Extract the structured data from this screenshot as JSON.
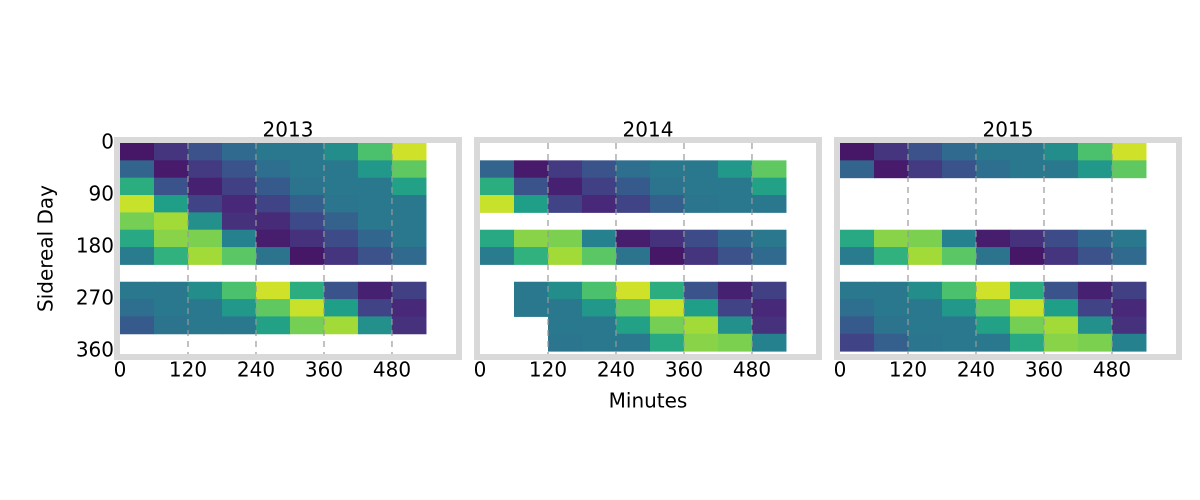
{
  "chart_data": [
    {
      "type": "heatmap",
      "title": "2013",
      "ylabel": "Sidereal Day",
      "colormap": "viridis",
      "grid": "x",
      "xlim": [
        0,
        593
      ],
      "ylim": [
        0,
        365
      ],
      "y_inverted": true,
      "xticks": [
        0,
        120,
        240,
        360,
        480
      ],
      "yticks": [
        0,
        90,
        180,
        270,
        360
      ],
      "x_edges": [
        0,
        60,
        120,
        180,
        240,
        300,
        360,
        420,
        480,
        540
      ],
      "y_edges": [
        0,
        30,
        60,
        90,
        120,
        150,
        180,
        210,
        240,
        270,
        300,
        330,
        360
      ],
      "values": [
        [
          0.06,
          0.15,
          0.25,
          0.34,
          0.4,
          0.4,
          0.49,
          0.71,
          0.93
        ],
        [
          0.32,
          0.07,
          0.17,
          0.26,
          0.36,
          0.4,
          0.4,
          0.53,
          0.75
        ],
        [
          0.62,
          0.26,
          0.09,
          0.19,
          0.28,
          0.38,
          0.4,
          0.4,
          0.57
        ],
        [
          0.92,
          0.56,
          0.2,
          0.11,
          0.2,
          0.3,
          0.39,
          0.4,
          0.4
        ],
        [
          0.79,
          0.86,
          0.5,
          0.14,
          0.12,
          0.22,
          0.31,
          0.4,
          0.4
        ],
        [
          0.6,
          0.82,
          0.8,
          0.44,
          0.08,
          0.14,
          0.23,
          0.33,
          0.4
        ],
        [
          0.42,
          0.64,
          0.86,
          0.74,
          0.38,
          0.06,
          0.15,
          0.25,
          0.34
        ],
        [
          null,
          null,
          null,
          null,
          null,
          null,
          null,
          null,
          null
        ],
        [
          0.4,
          0.4,
          0.49,
          0.71,
          0.93,
          0.62,
          0.26,
          0.09,
          0.19
        ],
        [
          0.36,
          0.4,
          0.4,
          0.53,
          0.75,
          0.92,
          0.56,
          0.2,
          0.11
        ],
        [
          0.28,
          0.38,
          0.4,
          0.4,
          0.57,
          0.79,
          0.86,
          0.5,
          0.14
        ],
        [
          null,
          null,
          null,
          null,
          null,
          null,
          null,
          null,
          null
        ]
      ]
    },
    {
      "type": "heatmap",
      "title": "2014",
      "xlabel": "Minutes",
      "colormap": "viridis",
      "grid": "x",
      "xlim": [
        0,
        593
      ],
      "ylim": [
        0,
        365
      ],
      "y_inverted": true,
      "xticks": [
        0,
        120,
        240,
        360,
        480
      ],
      "x_edges": [
        0,
        60,
        120,
        180,
        240,
        300,
        360,
        420,
        480,
        540
      ],
      "y_edges": [
        0,
        30,
        60,
        90,
        120,
        150,
        180,
        210,
        240,
        270,
        300,
        330,
        360
      ],
      "values": [
        [
          null,
          null,
          null,
          null,
          null,
          null,
          null,
          null,
          null
        ],
        [
          0.32,
          0.07,
          0.17,
          0.26,
          0.36,
          0.4,
          0.4,
          0.53,
          0.75
        ],
        [
          0.62,
          0.26,
          0.09,
          0.19,
          0.28,
          0.38,
          0.4,
          0.4,
          0.57
        ],
        [
          0.92,
          0.56,
          0.2,
          0.11,
          0.2,
          0.3,
          0.39,
          0.4,
          0.4
        ],
        [
          null,
          null,
          null,
          null,
          null,
          null,
          null,
          null,
          null
        ],
        [
          0.6,
          0.82,
          0.8,
          0.44,
          0.08,
          0.14,
          0.23,
          0.33,
          0.4
        ],
        [
          0.42,
          0.64,
          0.86,
          0.74,
          0.38,
          0.06,
          0.15,
          0.25,
          0.34
        ],
        [
          null,
          null,
          null,
          null,
          null,
          null,
          null,
          null,
          null
        ],
        [
          null,
          0.4,
          0.49,
          0.71,
          0.93,
          0.62,
          0.26,
          0.09,
          0.19
        ],
        [
          null,
          0.4,
          0.4,
          0.53,
          0.75,
          0.92,
          0.56,
          0.2,
          0.11
        ],
        [
          null,
          null,
          0.4,
          0.4,
          0.57,
          0.79,
          0.86,
          0.5,
          0.14
        ],
        [
          null,
          null,
          0.39,
          0.4,
          0.4,
          0.6,
          0.82,
          0.8,
          0.44
        ]
      ]
    },
    {
      "type": "heatmap",
      "title": "2015",
      "colormap": "viridis",
      "grid": "x",
      "xlim": [
        0,
        593
      ],
      "ylim": [
        0,
        365
      ],
      "y_inverted": true,
      "xticks": [
        0,
        120,
        240,
        360,
        480
      ],
      "x_edges": [
        0,
        60,
        120,
        180,
        240,
        300,
        360,
        420,
        480,
        540
      ],
      "y_edges": [
        0,
        30,
        60,
        90,
        120,
        150,
        180,
        210,
        240,
        270,
        300,
        330,
        360
      ],
      "values": [
        [
          0.06,
          0.15,
          0.25,
          0.34,
          0.4,
          0.4,
          0.49,
          0.71,
          0.93
        ],
        [
          0.32,
          0.07,
          0.17,
          0.26,
          0.36,
          0.4,
          0.4,
          0.53,
          0.75
        ],
        [
          null,
          null,
          null,
          null,
          null,
          null,
          null,
          null,
          null
        ],
        [
          null,
          null,
          null,
          null,
          null,
          null,
          null,
          null,
          null
        ],
        [
          null,
          null,
          null,
          null,
          null,
          null,
          null,
          null,
          null
        ],
        [
          0.6,
          0.82,
          0.8,
          0.44,
          0.08,
          0.14,
          0.23,
          0.33,
          0.4
        ],
        [
          0.42,
          0.64,
          0.86,
          0.74,
          0.38,
          0.06,
          0.15,
          0.25,
          0.34
        ],
        [
          null,
          null,
          null,
          null,
          null,
          null,
          null,
          null,
          null
        ],
        [
          0.4,
          0.4,
          0.49,
          0.71,
          0.93,
          0.62,
          0.26,
          0.09,
          0.19
        ],
        [
          0.36,
          0.4,
          0.4,
          0.53,
          0.75,
          0.92,
          0.56,
          0.2,
          0.11
        ],
        [
          0.28,
          0.38,
          0.4,
          0.4,
          0.57,
          0.79,
          0.86,
          0.5,
          0.14
        ],
        [
          0.2,
          0.3,
          0.39,
          0.4,
          0.4,
          0.6,
          0.82,
          0.8,
          0.44
        ]
      ]
    }
  ]
}
